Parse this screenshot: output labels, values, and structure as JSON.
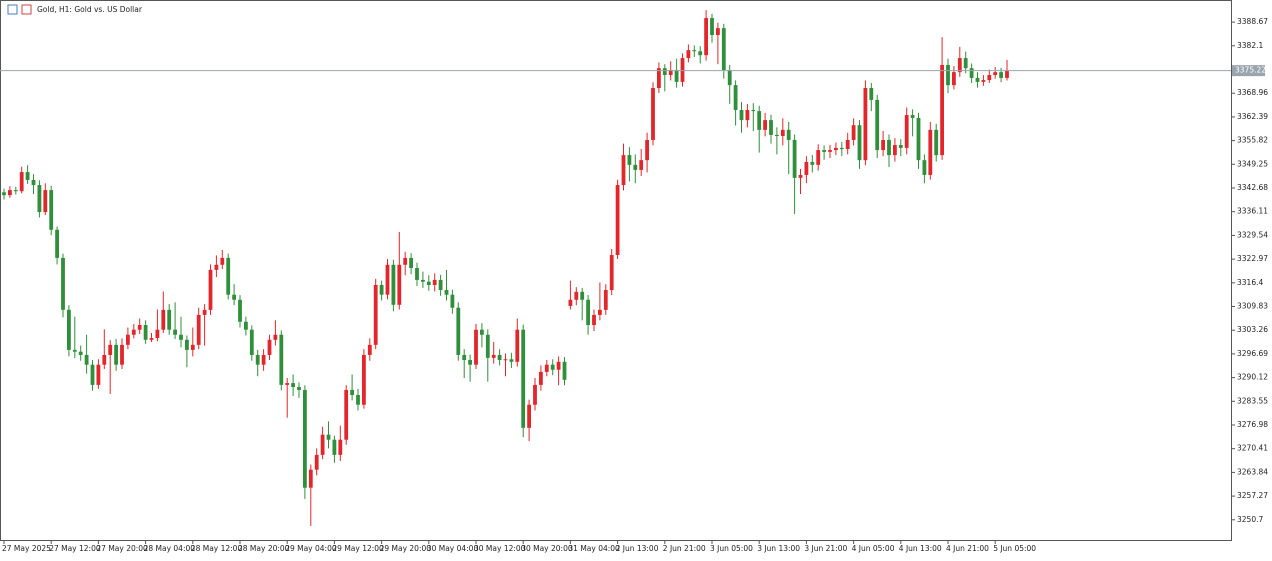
{
  "chart_data": {
    "type": "candlestick",
    "title": "Gold, H1:  Gold vs. US Dollar",
    "up_color": "#e2262b",
    "down_color": "#2f8f3a",
    "current_price": 3375.22,
    "ylim": [
      3245.1,
      3394.8
    ],
    "yticks": [
      3388.67,
      3382.1,
      3368.96,
      3362.39,
      3355.82,
      3349.25,
      3342.68,
      3336.11,
      3329.54,
      3322.97,
      3316.4,
      3309.83,
      3303.26,
      3296.69,
      3290.12,
      3283.55,
      3276.98,
      3270.41,
      3263.84,
      3257.27,
      3250.7
    ],
    "categories": [
      "27 May 2025",
      null,
      null,
      null,
      null,
      null,
      null,
      null,
      "27 May 12:00",
      null,
      null,
      null,
      null,
      null,
      null,
      null,
      "27 May 20:00",
      null,
      null,
      null,
      null,
      null,
      null,
      null,
      "28 May 04:00",
      null,
      null,
      null,
      null,
      null,
      null,
      null,
      "28 May 12:00",
      null,
      null,
      null,
      null,
      null,
      null,
      null,
      "28 May 20:00",
      null,
      null,
      null,
      null,
      null,
      null,
      null,
      "29 May 04:00",
      null,
      null,
      null,
      null,
      null,
      null,
      null,
      "29 May 12:00",
      null,
      null,
      null,
      null,
      null,
      null,
      null,
      "29 May 20:00",
      null,
      null,
      null,
      null,
      null,
      null,
      null,
      "30 May 04:00",
      null,
      null,
      null,
      null,
      null,
      null,
      null,
      "30 May 12:00",
      null,
      null,
      null,
      null,
      null,
      null,
      null,
      "30 May 20:00",
      null,
      null,
      null,
      null,
      null,
      null,
      null,
      "31 May 04:00",
      null,
      null,
      null,
      null,
      null,
      null,
      null,
      "2 Jun 13:00",
      null,
      null,
      null,
      null,
      null,
      null,
      null,
      "2 Jun 21:00",
      null,
      null,
      null,
      null,
      null,
      null,
      null,
      "3 Jun 05:00",
      null,
      null,
      null,
      null,
      null,
      null,
      null,
      "3 Jun 13:00",
      null,
      null,
      null,
      null,
      null,
      null,
      null,
      "3 Jun 21:00",
      null,
      null,
      null,
      null,
      null,
      null,
      null,
      "4 Jun 05:00",
      null,
      null,
      null,
      null,
      null,
      null,
      null,
      "4 Jun 13:00",
      null,
      null,
      null,
      null,
      null,
      null,
      null,
      "4 Jun 21:00",
      null,
      null,
      null,
      null,
      null,
      null,
      null,
      "5 Jun 05:00",
      null,
      null
    ],
    "open": [
      3341.5,
      3340.7,
      3342.1,
      3341.8,
      3347.1,
      3344.9,
      3343.5,
      3336.0,
      3342.1,
      3331.1,
      3323.3,
      3308.9,
      3297.8,
      3297.3,
      3296.4,
      3293.7,
      3288.1,
      3293.7,
      3296.4,
      3299.2,
      3293.7,
      3299.2,
      3302.0,
      3303.4,
      3304.7,
      3300.6,
      3301.1,
      3303.4,
      3308.9,
      3303.4,
      3302.0,
      3300.6,
      3297.8,
      3299.2,
      3307.5,
      3308.9,
      3320.0,
      3321.4,
      3323.3,
      3313.1,
      3311.7,
      3305.6,
      3303.4,
      3296.4,
      3293.7,
      3296.4,
      3300.6,
      3302.0,
      3288.1,
      3288.6,
      3287.5,
      3286.7,
      3259.6,
      3264.6,
      3268.7,
      3274.3,
      3272.9,
      3268.7,
      3272.9,
      3286.7,
      3285.3,
      3282.6,
      3296.4,
      3299.2,
      3315.8,
      3313.1,
      3321.4,
      3310.3,
      3321.4,
      3323.3,
      3320.5,
      3317.2,
      3316.7,
      3315.8,
      3317.2,
      3314.4,
      3313.1,
      3309.5,
      3296.4,
      3295.0,
      3293.7,
      3303.4,
      3302.0,
      3295.6,
      3296.4,
      3295.0,
      3295.2,
      3294.5,
      3303.4,
      3276.2,
      3282.6,
      3288.1,
      3291.7,
      3293.7,
      3292.3,
      3294.5,
      3310.0,
      3311.7,
      3313.9,
      3311.7,
      3304.7,
      3307.5,
      3308.9,
      3314.4,
      3324.1,
      3343.5,
      3351.8,
      3349.1,
      3347.7,
      3350.4,
      3356.0,
      3370.4,
      3375.9,
      3374.0,
      3375.4,
      3372.1,
      3378.7,
      3380.9,
      3380.6,
      3379.5,
      3389.8,
      3385.1,
      3387.0,
      3375.4,
      3371.2,
      3364.3,
      3361.5,
      3364.3,
      3364.0,
      3358.8,
      3361.5,
      3357.4,
      3357.1,
      3358.8,
      3356.0,
      3345.5,
      3346.3,
      3349.9,
      3349.1,
      3353.2,
      3352.7,
      3353.2,
      3353.8,
      3353.5,
      3356.0,
      3360.1,
      3350.4,
      3370.4,
      3367.1,
      3353.2,
      3356.0,
      3351.8,
      3354.6,
      3353.8,
      3362.9,
      3362.1,
      3350.4,
      3346.3,
      3358.8,
      3351.8,
      3376.8,
      3371.2,
      3374.8,
      3378.7,
      3375.9,
      3373.2,
      3372.1,
      3372.6,
      3374.0,
      3374.8,
      3373.2
    ],
    "high": [
      3342.5,
      3343.2,
      3343.0,
      3348.6,
      3349.0,
      3346.5,
      3344.8,
      3344.0,
      3343.3,
      3332.0,
      3324.5,
      3310.2,
      3307.0,
      3299.0,
      3302.0,
      3295.0,
      3295.2,
      3303.5,
      3300.5,
      3300.8,
      3301.0,
      3304.0,
      3305.0,
      3306.5,
      3306.0,
      3302.5,
      3309.0,
      3314.0,
      3310.5,
      3311.0,
      3307.0,
      3301.8,
      3304.0,
      3309.5,
      3310.5,
      3321.5,
      3324.0,
      3325.5,
      3324.5,
      3316.0,
      3313.0,
      3307.0,
      3304.6,
      3297.8,
      3298.0,
      3302.0,
      3306.0,
      3303.2,
      3290.0,
      3291.0,
      3288.8,
      3288.0,
      3266.0,
      3270.5,
      3276.5,
      3278.0,
      3274.0,
      3276.8,
      3288.0,
      3291.0,
      3287.0,
      3298.0,
      3301.0,
      3317.5,
      3317.0,
      3323.0,
      3322.8,
      3330.5,
      3325.0,
      3324.6,
      3322.0,
      3319.5,
      3318.5,
      3319.0,
      3318.6,
      3320.0,
      3314.5,
      3311.0,
      3298.0,
      3296.5,
      3305.0,
      3305.2,
      3303.5,
      3300.0,
      3298.0,
      3296.8,
      3297.0,
      3306.5,
      3304.8,
      3284.0,
      3290.0,
      3293.5,
      3295.0,
      3295.2,
      3296.0,
      3295.8,
      3317.0,
      3315.2,
      3315.0,
      3313.0,
      3309.0,
      3316.5,
      3316.0,
      3325.8,
      3345.0,
      3355.0,
      3354.0,
      3352.0,
      3353.5,
      3358.0,
      3372.0,
      3377.5,
      3377.0,
      3377.8,
      3378.5,
      3380.0,
      3382.5,
      3382.2,
      3382.0,
      3392.0,
      3391.0,
      3388.5,
      3388.2,
      3376.8,
      3372.5,
      3366.5,
      3366.0,
      3366.2,
      3365.5,
      3363.5,
      3363.0,
      3359.5,
      3362.0,
      3361.0,
      3357.5,
      3348.0,
      3351.5,
      3351.8,
      3354.8,
      3354.5,
      3354.6,
      3355.3,
      3355.5,
      3358.0,
      3362.0,
      3361.5,
      3372.5,
      3371.8,
      3368.5,
      3358.5,
      3357.5,
      3356.5,
      3356.2,
      3365.0,
      3364.5,
      3363.5,
      3352.0,
      3361.0,
      3360.5,
      3384.5,
      3378.5,
      3376.5,
      3381.8,
      3380.5,
      3377.2,
      3374.8,
      3374.0,
      3375.5,
      3376.2,
      3376.0,
      3378.2
    ],
    "low": [
      3339.5,
      3340.0,
      3340.9,
      3341.2,
      3343.8,
      3341.0,
      3334.5,
      3335.2,
      3329.6,
      3321.5,
      3306.8,
      3296.0,
      3295.5,
      3294.8,
      3291.2,
      3286.5,
      3287.0,
      3292.5,
      3285.6,
      3292.0,
      3292.5,
      3298.0,
      3301.0,
      3302.2,
      3299.5,
      3300.0,
      3300.2,
      3302.5,
      3302.0,
      3300.8,
      3298.5,
      3293.0,
      3296.0,
      3298.0,
      3299.0,
      3307.5,
      3318.0,
      3320.2,
      3311.8,
      3310.2,
      3304.0,
      3301.8,
      3294.8,
      3290.5,
      3292.0,
      3295.0,
      3299.0,
      3286.6,
      3279.0,
      3285.0,
      3284.5,
      3256.5,
      3249.0,
      3263.0,
      3267.5,
      3270.5,
      3266.5,
      3267.0,
      3271.5,
      3283.8,
      3281.0,
      3281.5,
      3294.8,
      3298.0,
      3311.5,
      3311.8,
      3308.5,
      3309.0,
      3318.5,
      3318.8,
      3315.5,
      3315.0,
      3314.2,
      3314.0,
      3312.8,
      3311.5,
      3307.8,
      3294.8,
      3290.0,
      3289.0,
      3292.5,
      3298.5,
      3289.0,
      3294.0,
      3293.5,
      3290.5,
      3292.8,
      3293.2,
      3273.6,
      3272.5,
      3281.0,
      3286.5,
      3290.5,
      3290.8,
      3288.0,
      3288.0,
      3309.0,
      3310.2,
      3306.0,
      3302.0,
      3303.0,
      3306.0,
      3307.5,
      3313.0,
      3323.0,
      3342.0,
      3344.5,
      3344.0,
      3346.0,
      3347.0,
      3354.5,
      3369.0,
      3369.5,
      3372.5,
      3370.5,
      3370.8,
      3377.5,
      3379.0,
      3377.2,
      3378.0,
      3383.0,
      3377.0,
      3373.0,
      3366.0,
      3360.0,
      3358.0,
      3359.5,
      3358.5,
      3352.5,
      3357.0,
      3355.0,
      3352.0,
      3354.5,
      3346.5,
      3335.5,
      3341.0,
      3344.0,
      3347.0,
      3347.5,
      3350.5,
      3351.0,
      3351.8,
      3351.5,
      3352.0,
      3354.5,
      3348.0,
      3349.0,
      3364.0,
      3351.0,
      3351.5,
      3348.5,
      3350.0,
      3351.5,
      3352.0,
      3357.0,
      3348.0,
      3344.0,
      3345.0,
      3350.0,
      3350.5,
      3369.0,
      3370.0,
      3373.5,
      3374.5,
      3371.8,
      3370.5,
      3371.0,
      3371.8,
      3373.0,
      3372.0,
      3372.5
    ],
    "close": [
      3340.7,
      3342.1,
      3341.8,
      3347.1,
      3344.9,
      3343.5,
      3336.0,
      3342.1,
      3331.1,
      3323.3,
      3308.9,
      3297.8,
      3297.3,
      3296.4,
      3293.7,
      3288.1,
      3293.7,
      3296.4,
      3299.2,
      3293.7,
      3299.2,
      3302.0,
      3303.4,
      3304.7,
      3300.6,
      3301.1,
      3303.4,
      3308.9,
      3303.4,
      3302.0,
      3300.6,
      3297.8,
      3299.2,
      3307.5,
      3308.9,
      3320.0,
      3321.4,
      3323.3,
      3313.1,
      3311.7,
      3305.6,
      3303.4,
      3296.4,
      3293.7,
      3296.4,
      3300.6,
      3302.0,
      3288.1,
      3288.6,
      3287.5,
      3286.7,
      3259.6,
      3264.6,
      3268.7,
      3274.3,
      3272.9,
      3268.7,
      3272.9,
      3286.7,
      3285.3,
      3282.6,
      3296.4,
      3299.2,
      3315.8,
      3313.1,
      3321.4,
      3310.3,
      3321.4,
      3323.3,
      3320.5,
      3317.2,
      3316.7,
      3315.8,
      3317.2,
      3314.4,
      3313.1,
      3309.5,
      3296.4,
      3295.0,
      3293.7,
      3303.4,
      3302.0,
      3295.6,
      3296.4,
      3295.0,
      3295.2,
      3294.5,
      3303.4,
      3276.2,
      3282.6,
      3288.1,
      3291.7,
      3293.7,
      3292.3,
      3294.5,
      3289.5,
      3311.7,
      3313.9,
      3311.7,
      3304.7,
      3307.5,
      3308.9,
      3314.4,
      3324.1,
      3343.5,
      3351.8,
      3349.1,
      3347.7,
      3350.4,
      3356.0,
      3370.4,
      3375.9,
      3374.0,
      3375.4,
      3372.1,
      3378.7,
      3380.9,
      3380.6,
      3379.5,
      3389.8,
      3385.1,
      3387.0,
      3375.4,
      3371.2,
      3364.3,
      3361.5,
      3364.3,
      3364.0,
      3358.8,
      3361.5,
      3357.4,
      3357.1,
      3358.8,
      3356.0,
      3345.5,
      3346.3,
      3349.9,
      3349.1,
      3353.2,
      3352.7,
      3353.2,
      3353.8,
      3353.5,
      3356.0,
      3360.1,
      3350.4,
      3370.4,
      3367.1,
      3353.2,
      3356.0,
      3351.8,
      3354.6,
      3353.8,
      3362.9,
      3362.1,
      3350.4,
      3346.3,
      3358.8,
      3351.8,
      3376.8,
      3371.2,
      3374.8,
      3378.7,
      3375.9,
      3373.2,
      3372.1,
      3372.6,
      3374.0,
      3374.8,
      3373.2,
      3375.2
    ]
  }
}
